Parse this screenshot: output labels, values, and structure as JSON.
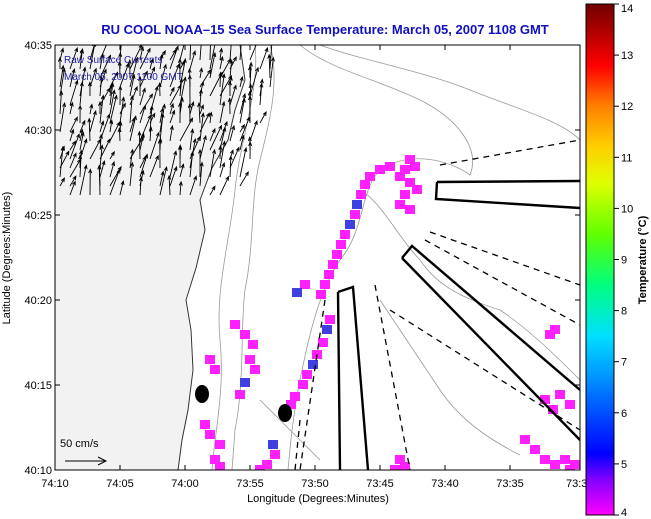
{
  "title": "RU COOL  NOAA–15  Sea Surface Temperature:  March 05, 2007 1108 GMT",
  "overlay": {
    "line1": "Raw Surface Currents",
    "line2": "March 05, 2007 1100 GMT"
  },
  "axes": {
    "xlabel": "Longitude (Degrees:Minutes)",
    "ylabel": "Latitude (Degrees:Minutes)",
    "xticks": [
      "74:10",
      "74:05",
      "74:00",
      "73:55",
      "73:50",
      "73:45",
      "73:40",
      "73:35",
      "73:3"
    ],
    "yticks": [
      "40:35",
      "40:30",
      "40:25",
      "40:20",
      "40:15",
      "40:10"
    ]
  },
  "scale": {
    "label": "50 cm/s"
  },
  "colorbar": {
    "label": "Temperature (°C)",
    "ticks": [
      "14",
      "13",
      "12",
      "11",
      "10",
      "9",
      "8",
      "7",
      "6",
      "5",
      "4"
    ],
    "min": 4,
    "max": 14,
    "colors": [
      "#ff00ff",
      "#5000ff",
      "#0000ff",
      "#0060ff",
      "#00d0ff",
      "#00ff80",
      "#40ff00",
      "#c0ff00",
      "#ffff00",
      "#ffa000",
      "#ff4000",
      "#ff0000",
      "#a00000",
      "#700000"
    ]
  },
  "sst_color": "#ff20ff",
  "sst_cold_color": "#4040e0"
}
